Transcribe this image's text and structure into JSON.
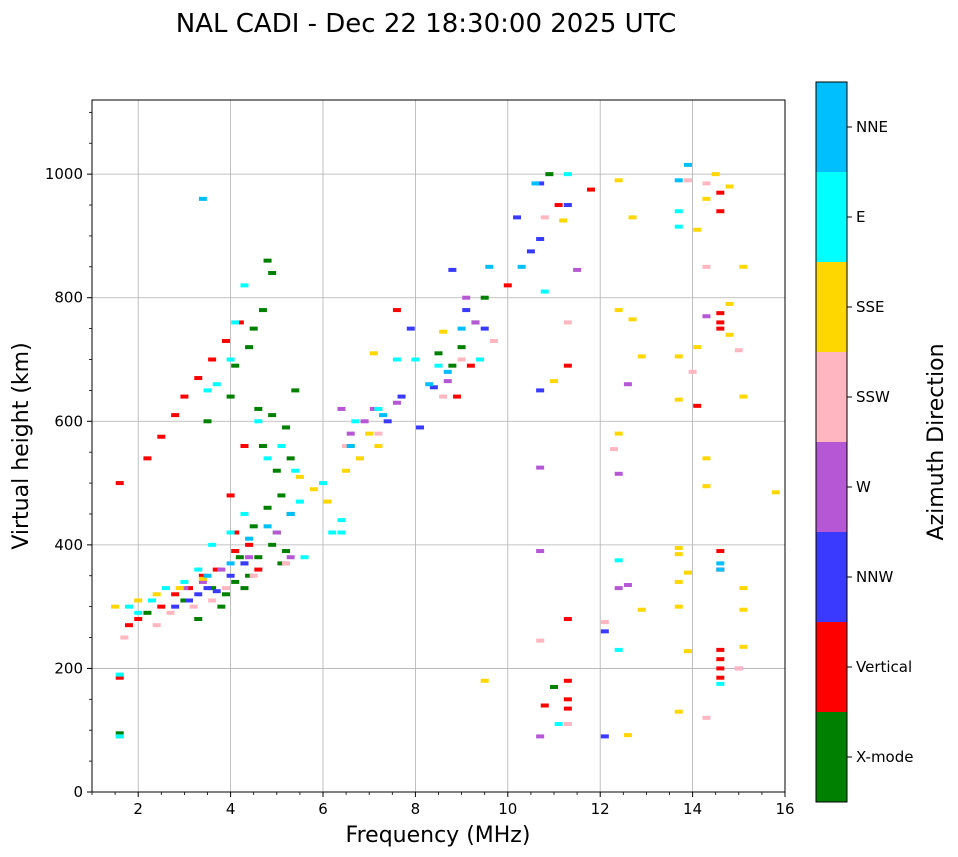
{
  "chart_data": {
    "type": "scatter",
    "title": "NAL CADI - Dec 22 18:30:00 2025 UTC",
    "xlabel": "Frequency (MHz)",
    "ylabel": "Virtual height (km)",
    "xlim": [
      1,
      16
    ],
    "ylim": [
      0,
      1120
    ],
    "xticks": [
      2,
      4,
      6,
      8,
      10,
      12,
      14,
      16
    ],
    "yticks": [
      0,
      200,
      400,
      600,
      800,
      1000
    ],
    "grid": true,
    "colorbar": {
      "label": "Azimuth Direction",
      "categories": [
        {
          "name": "X-mode",
          "color": "#008000"
        },
        {
          "name": "Vertical",
          "color": "#ff0000"
        },
        {
          "name": "NNW",
          "color": "#3a3aff"
        },
        {
          "name": "W",
          "color": "#b657d6"
        },
        {
          "name": "SSW",
          "color": "#ffb6c1"
        },
        {
          "name": "SSE",
          "color": "#ffd700"
        },
        {
          "name": "E",
          "color": "#00ffff"
        },
        {
          "name": "NNE",
          "color": "#00bfff"
        }
      ]
    },
    "series": [
      {
        "name": "X-mode",
        "points": [
          [
            1.6,
            95
          ],
          [
            2.2,
            290
          ],
          [
            3.0,
            310
          ],
          [
            3.3,
            280
          ],
          [
            3.5,
            600
          ],
          [
            3.8,
            300
          ],
          [
            4.0,
            640
          ],
          [
            4.1,
            690
          ],
          [
            4.3,
            330
          ],
          [
            4.4,
            720
          ],
          [
            4.5,
            750
          ],
          [
            4.7,
            780
          ],
          [
            4.8,
            860
          ],
          [
            4.9,
            840
          ],
          [
            4.6,
            620
          ],
          [
            4.7,
            560
          ],
          [
            4.9,
            610
          ],
          [
            5.0,
            520
          ],
          [
            5.1,
            480
          ],
          [
            5.2,
            590
          ],
          [
            5.3,
            540
          ],
          [
            5.4,
            650
          ],
          [
            5.0,
            420
          ],
          [
            5.2,
            390
          ],
          [
            4.8,
            460
          ],
          [
            4.5,
            430
          ],
          [
            4.4,
            350
          ],
          [
            4.2,
            380
          ],
          [
            3.6,
            330
          ],
          [
            3.9,
            320
          ],
          [
            4.1,
            340
          ],
          [
            4.3,
            370
          ],
          [
            4.6,
            380
          ],
          [
            4.9,
            400
          ],
          [
            5.1,
            370
          ],
          [
            5.3,
            450
          ],
          [
            8.5,
            710
          ],
          [
            8.8,
            690
          ],
          [
            9.0,
            720
          ],
          [
            9.3,
            760
          ],
          [
            9.5,
            800
          ],
          [
            10.9,
            1000
          ],
          [
            11.0,
            170
          ]
        ]
      },
      {
        "name": "Vertical",
        "points": [
          [
            1.6,
            185
          ],
          [
            1.6,
            500
          ],
          [
            1.8,
            270
          ],
          [
            2.0,
            280
          ],
          [
            2.2,
            540
          ],
          [
            2.5,
            575
          ],
          [
            2.8,
            610
          ],
          [
            3.0,
            640
          ],
          [
            3.3,
            670
          ],
          [
            3.6,
            700
          ],
          [
            3.9,
            730
          ],
          [
            4.0,
            480
          ],
          [
            4.1,
            420
          ],
          [
            4.1,
            390
          ],
          [
            4.2,
            760
          ],
          [
            4.3,
            560
          ],
          [
            2.5,
            300
          ],
          [
            2.8,
            320
          ],
          [
            3.1,
            330
          ],
          [
            3.4,
            350
          ],
          [
            3.7,
            360
          ],
          [
            4.4,
            400
          ],
          [
            4.6,
            360
          ],
          [
            7.6,
            780
          ],
          [
            8.9,
            640
          ],
          [
            9.2,
            690
          ],
          [
            10.0,
            820
          ],
          [
            10.8,
            140
          ],
          [
            11.1,
            950
          ],
          [
            11.3,
            180
          ],
          [
            11.3,
            150
          ],
          [
            11.3,
            135
          ],
          [
            11.3,
            280
          ],
          [
            11.3,
            690
          ],
          [
            11.8,
            975
          ],
          [
            14.1,
            625
          ],
          [
            14.6,
            940
          ],
          [
            14.6,
            970
          ],
          [
            14.6,
            760
          ],
          [
            14.6,
            775
          ],
          [
            14.6,
            750
          ],
          [
            14.6,
            390
          ],
          [
            14.6,
            360
          ],
          [
            14.6,
            230
          ],
          [
            14.6,
            215
          ],
          [
            14.6,
            200
          ],
          [
            14.6,
            185
          ]
        ]
      },
      {
        "name": "NNW",
        "points": [
          [
            2.8,
            300
          ],
          [
            3.1,
            310
          ],
          [
            3.3,
            320
          ],
          [
            3.5,
            330
          ],
          [
            3.7,
            325
          ],
          [
            4.0,
            350
          ],
          [
            4.3,
            370
          ],
          [
            7.4,
            600
          ],
          [
            7.7,
            640
          ],
          [
            7.9,
            750
          ],
          [
            8.1,
            590
          ],
          [
            8.4,
            655
          ],
          [
            8.8,
            845
          ],
          [
            9.1,
            780
          ],
          [
            9.5,
            750
          ],
          [
            10.2,
            930
          ],
          [
            10.5,
            875
          ],
          [
            10.7,
            985
          ],
          [
            10.7,
            895
          ],
          [
            10.7,
            650
          ],
          [
            11.3,
            950
          ],
          [
            12.1,
            90
          ],
          [
            12.1,
            260
          ]
        ]
      },
      {
        "name": "W",
        "points": [
          [
            3.0,
            330
          ],
          [
            3.4,
            340
          ],
          [
            3.8,
            360
          ],
          [
            4.4,
            380
          ],
          [
            5.0,
            420
          ],
          [
            5.3,
            380
          ],
          [
            6.4,
            620
          ],
          [
            6.6,
            580
          ],
          [
            6.9,
            600
          ],
          [
            7.1,
            620
          ],
          [
            7.6,
            630
          ],
          [
            8.7,
            665
          ],
          [
            9.1,
            800
          ],
          [
            9.3,
            760
          ],
          [
            10.7,
            525
          ],
          [
            10.7,
            390
          ],
          [
            10.7,
            90
          ],
          [
            11.5,
            845
          ],
          [
            12.4,
            515
          ],
          [
            12.6,
            660
          ],
          [
            12.6,
            335
          ],
          [
            12.4,
            330
          ],
          [
            14.3,
            770
          ],
          [
            15.0,
            200
          ]
        ]
      },
      {
        "name": "SSW",
        "points": [
          [
            1.7,
            250
          ],
          [
            2.4,
            270
          ],
          [
            2.7,
            290
          ],
          [
            3.2,
            300
          ],
          [
            3.6,
            310
          ],
          [
            3.9,
            330
          ],
          [
            4.5,
            350
          ],
          [
            5.2,
            370
          ],
          [
            6.5,
            560
          ],
          [
            6.8,
            540
          ],
          [
            7.2,
            580
          ],
          [
            8.6,
            640
          ],
          [
            9.0,
            700
          ],
          [
            9.7,
            730
          ],
          [
            10.8,
            930
          ],
          [
            11.3,
            760
          ],
          [
            11.3,
            110
          ],
          [
            10.7,
            245
          ],
          [
            12.1,
            275
          ],
          [
            12.3,
            555
          ],
          [
            13.9,
            990
          ],
          [
            14.0,
            680
          ],
          [
            14.3,
            850
          ],
          [
            14.3,
            985
          ],
          [
            14.3,
            120
          ],
          [
            15.0,
            715
          ],
          [
            15.0,
            200
          ]
        ]
      },
      {
        "name": "SSE",
        "points": [
          [
            1.6,
            90
          ],
          [
            1.5,
            300
          ],
          [
            2.0,
            310
          ],
          [
            2.4,
            320
          ],
          [
            2.9,
            330
          ],
          [
            3.4,
            345
          ],
          [
            5.5,
            510
          ],
          [
            5.8,
            490
          ],
          [
            6.1,
            470
          ],
          [
            6.5,
            520
          ],
          [
            6.6,
            560
          ],
          [
            6.8,
            540
          ],
          [
            7.0,
            580
          ],
          [
            7.1,
            710
          ],
          [
            7.2,
            560
          ],
          [
            8.6,
            745
          ],
          [
            9.5,
            180
          ],
          [
            11.0,
            665
          ],
          [
            11.2,
            925
          ],
          [
            12.4,
            990
          ],
          [
            12.4,
            780
          ],
          [
            12.4,
            580
          ],
          [
            12.7,
            765
          ],
          [
            12.7,
            930
          ],
          [
            12.9,
            705
          ],
          [
            12.9,
            295
          ],
          [
            12.6,
            92
          ],
          [
            13.7,
            635
          ],
          [
            13.7,
            705
          ],
          [
            13.7,
            395
          ],
          [
            13.7,
            385
          ],
          [
            13.7,
            340
          ],
          [
            13.7,
            300
          ],
          [
            13.7,
            130
          ],
          [
            13.9,
            355
          ],
          [
            13.9,
            228
          ],
          [
            14.1,
            910
          ],
          [
            14.1,
            720
          ],
          [
            14.3,
            960
          ],
          [
            14.5,
            1000
          ],
          [
            14.3,
            540
          ],
          [
            14.3,
            495
          ],
          [
            14.8,
            790
          ],
          [
            14.8,
            740
          ],
          [
            14.8,
            980
          ],
          [
            15.1,
            850
          ],
          [
            15.1,
            640
          ],
          [
            15.1,
            330
          ],
          [
            15.1,
            295
          ],
          [
            15.1,
            235
          ],
          [
            15.8,
            485
          ]
        ]
      },
      {
        "name": "E",
        "points": [
          [
            1.6,
            90
          ],
          [
            1.6,
            190
          ],
          [
            1.8,
            300
          ],
          [
            2.0,
            290
          ],
          [
            2.3,
            310
          ],
          [
            2.6,
            330
          ],
          [
            3.0,
            340
          ],
          [
            3.3,
            360
          ],
          [
            3.6,
            400
          ],
          [
            4.0,
            420
          ],
          [
            4.3,
            450
          ],
          [
            3.5,
            650
          ],
          [
            3.7,
            660
          ],
          [
            4.0,
            700
          ],
          [
            4.1,
            760
          ],
          [
            4.3,
            820
          ],
          [
            4.6,
            600
          ],
          [
            4.8,
            540
          ],
          [
            5.1,
            560
          ],
          [
            5.4,
            520
          ],
          [
            5.5,
            470
          ],
          [
            5.6,
            380
          ],
          [
            6.0,
            500
          ],
          [
            6.2,
            420
          ],
          [
            6.4,
            440
          ],
          [
            6.4,
            420
          ],
          [
            6.7,
            600
          ],
          [
            7.2,
            620
          ],
          [
            7.6,
            700
          ],
          [
            8.0,
            700
          ],
          [
            8.5,
            690
          ],
          [
            9.4,
            700
          ],
          [
            10.8,
            810
          ],
          [
            11.3,
            1000
          ],
          [
            11.1,
            110
          ],
          [
            12.4,
            230
          ],
          [
            12.4,
            375
          ],
          [
            13.7,
            940
          ],
          [
            13.7,
            915
          ],
          [
            14.6,
            175
          ]
        ]
      },
      {
        "name": "NNE",
        "points": [
          [
            3.4,
            960
          ],
          [
            3.5,
            350
          ],
          [
            4.0,
            370
          ],
          [
            4.4,
            410
          ],
          [
            4.8,
            430
          ],
          [
            5.3,
            450
          ],
          [
            6.6,
            560
          ],
          [
            7.3,
            610
          ],
          [
            8.3,
            660
          ],
          [
            8.7,
            680
          ],
          [
            9.0,
            750
          ],
          [
            9.6,
            850
          ],
          [
            10.3,
            850
          ],
          [
            10.6,
            985
          ],
          [
            13.9,
            1015
          ],
          [
            13.7,
            990
          ],
          [
            14.6,
            370
          ],
          [
            14.6,
            360
          ]
        ]
      }
    ]
  }
}
